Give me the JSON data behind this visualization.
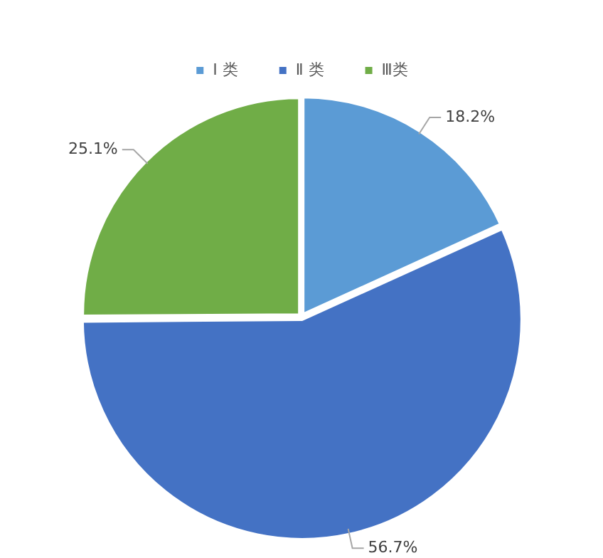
{
  "chart_data": {
    "type": "pie",
    "categories": [
      "Ⅰ 类",
      "Ⅱ 类",
      "Ⅲ类"
    ],
    "values": [
      18.2,
      56.7,
      25.1
    ],
    "colors": [
      "#5b9bd5",
      "#4472c4",
      "#70ad47"
    ],
    "value_labels": [
      "18.2%",
      "56.7%",
      "25.1%"
    ],
    "legend": "top"
  }
}
